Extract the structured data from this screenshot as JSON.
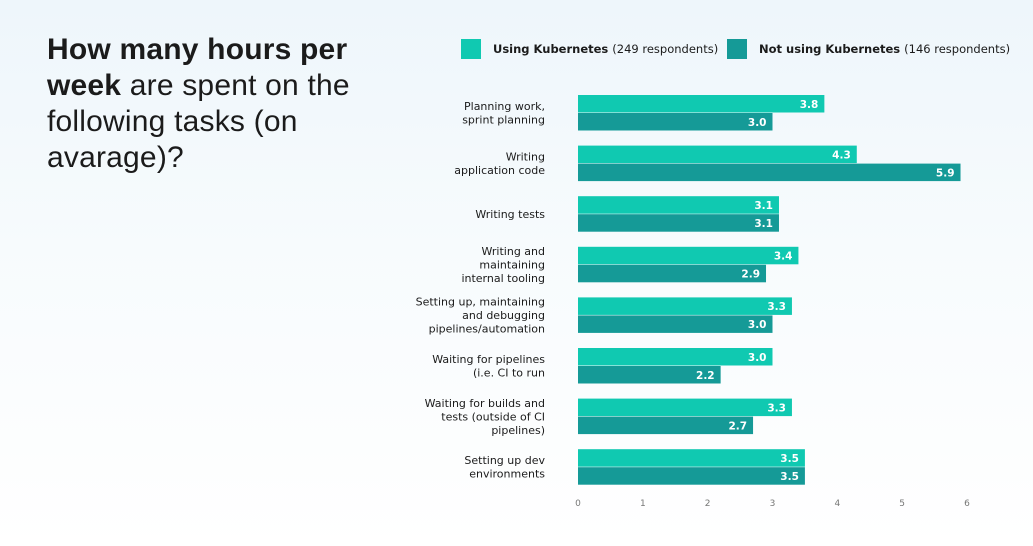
{
  "title": {
    "strong": "How many hours per week",
    "rest": " are spent on the following tasks (on avarage)?"
  },
  "legend": [
    {
      "name": "Using Kubernetes",
      "detail": "(249 respondents)"
    },
    {
      "name": "Not using Kubernetes",
      "detail": "(146 respondents)"
    }
  ],
  "colors": {
    "using": "#10c9b1",
    "not_using": "#159a97"
  },
  "chart_data": {
    "type": "bar",
    "orientation": "horizontal",
    "categories": [
      [
        "Planning work,",
        "sprint planning"
      ],
      [
        "Writing",
        "application code"
      ],
      [
        "Writing tests"
      ],
      [
        "Writing and",
        "maintaining",
        "internal tooling"
      ],
      [
        "Setting up, maintaining",
        "and debugging",
        "pipelines/automation"
      ],
      [
        "Waiting for pipelines",
        "(i.e. CI to run"
      ],
      [
        "Waiting for builds and",
        "tests (outside of CI",
        "pipelines)"
      ],
      [
        "Setting up dev",
        "environments"
      ]
    ],
    "series": [
      {
        "name": "Using Kubernetes",
        "values": [
          3.8,
          4.3,
          3.1,
          3.4,
          3.3,
          3.0,
          3.3,
          3.5
        ]
      },
      {
        "name": "Not using Kubernetes",
        "values": [
          3.0,
          5.9,
          3.1,
          2.9,
          3.0,
          2.2,
          2.7,
          3.5
        ]
      }
    ],
    "xlim": [
      0,
      6
    ],
    "xticks": [
      "0",
      "1",
      "2",
      "3",
      "4",
      "5",
      "6"
    ],
    "grid": false,
    "legend_position": "top"
  }
}
